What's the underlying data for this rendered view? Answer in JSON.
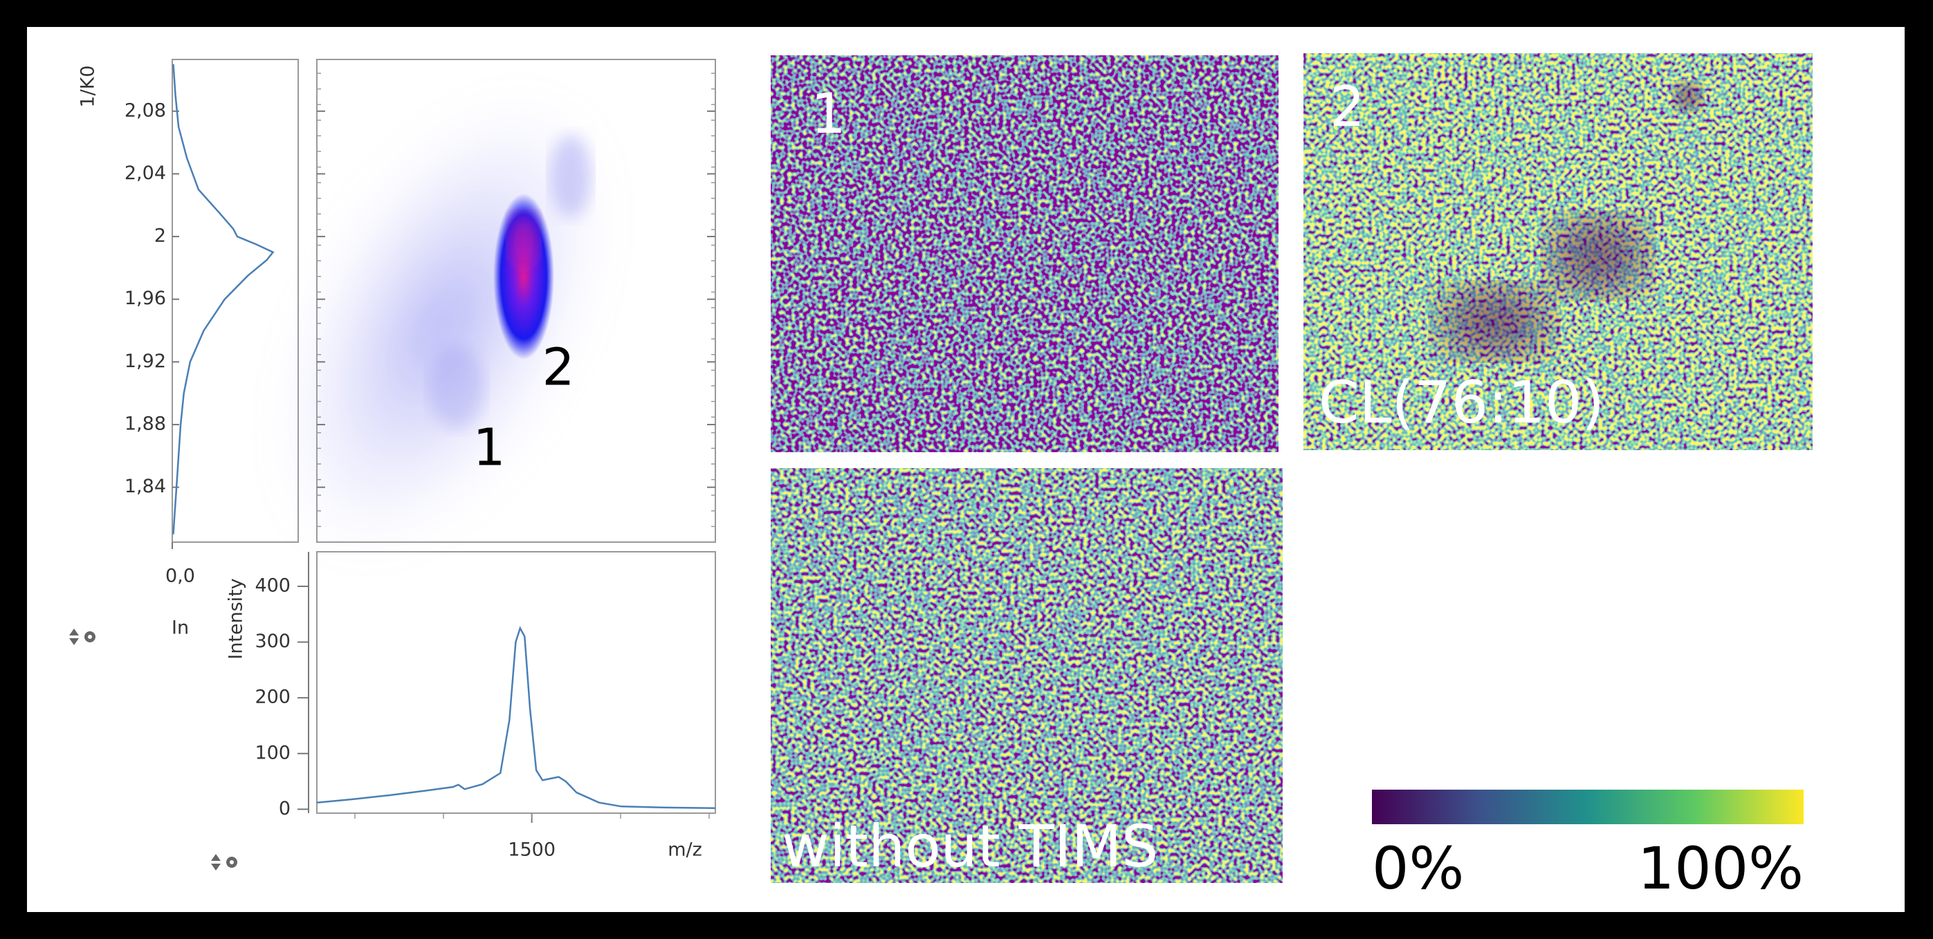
{
  "chart_data": [
    {
      "type": "line",
      "orientation": "vertical",
      "y_label": "1/K0",
      "x_label": "In",
      "xlim": [
        0,
        1.2
      ],
      "xticks": [
        {
          "value": 0,
          "label": "0,0"
        }
      ],
      "ylim": [
        1.805,
        2.113
      ],
      "yticks": [
        {
          "value": 2.08,
          "label": "2,08"
        },
        {
          "value": 2.04,
          "label": "2,04"
        },
        2,
        {
          "value": 1.96,
          "label": "1,96"
        },
        {
          "value": 1.92,
          "label": "1,92"
        },
        {
          "value": 1.88,
          "label": "1,88"
        },
        {
          "value": 1.84,
          "label": "1,84"
        }
      ],
      "x": [
        2.11,
        2.09,
        2.07,
        2.05,
        2.03,
        2.015,
        2.005,
        2.0,
        1.995,
        1.99,
        1.985,
        1.975,
        1.96,
        1.94,
        1.92,
        1.9,
        1.88,
        1.86,
        1.84,
        1.82,
        1.81
      ],
      "values": [
        0.01,
        0.03,
        0.06,
        0.14,
        0.25,
        0.45,
        0.58,
        0.62,
        0.8,
        0.96,
        0.9,
        0.72,
        0.5,
        0.3,
        0.17,
        0.11,
        0.08,
        0.06,
        0.04,
        0.02,
        0.01
      ],
      "color": "#4a7fb5"
    },
    {
      "type": "heatmap",
      "annotations": [
        "1",
        "2"
      ]
    },
    {
      "type": "line",
      "x_label": "m/z",
      "y_label": "Intensity",
      "xlim": [
        1260,
        1705
      ],
      "xticks": [
        1500
      ],
      "ylim": [
        -7,
        462
      ],
      "yticks": [
        0,
        100,
        200,
        300,
        400
      ],
      "x": [
        1260,
        1300,
        1340,
        1380,
        1412,
        1418,
        1425,
        1445,
        1465,
        1475,
        1482,
        1487,
        1492,
        1498,
        1505,
        1512,
        1530,
        1538,
        1550,
        1575,
        1600,
        1650,
        1705
      ],
      "values": [
        12,
        18,
        25,
        33,
        40,
        44,
        36,
        45,
        65,
        160,
        300,
        325,
        310,
        180,
        70,
        52,
        58,
        50,
        30,
        12,
        5,
        3,
        2
      ],
      "color": "#4a7fb5"
    }
  ],
  "ion_images": [
    {
      "label": "1"
    },
    {
      "label": "2",
      "compound": "CL(76:10)"
    },
    {
      "label": "without TIMS"
    }
  ],
  "colorbar": {
    "ticks": [
      {
        "value": 0,
        "label": "0%"
      },
      {
        "value": 100,
        "label": "100%"
      }
    ],
    "colors": [
      "#440154",
      "#3b528b",
      "#21918c",
      "#5ec962",
      "#fde725"
    ]
  }
}
